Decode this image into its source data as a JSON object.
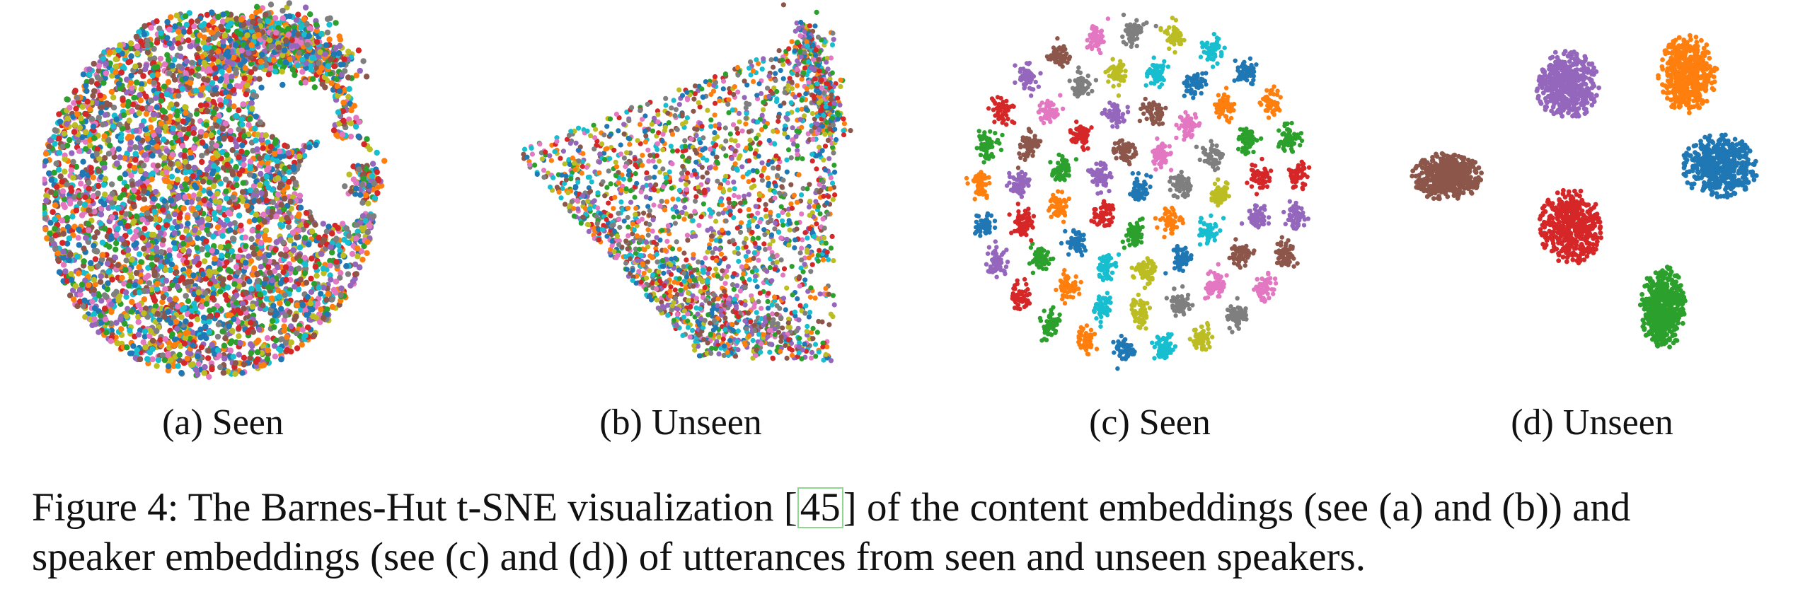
{
  "figure": {
    "subcaptions": [
      "(a) Seen",
      "(b) Unseen",
      "(c) Seen",
      "(d) Unseen"
    ],
    "caption": {
      "before_cite": "Figure 4: The Barnes-Hut t-SNE visualization [",
      "cite": "45",
      "after_cite": "] of the content embeddings (see (a) and (b)) and",
      "line2": "speaker embeddings (see (c) and (d)) of utterances from seen and unseen speakers."
    }
  },
  "palette": [
    "#1f77b4",
    "#ff7f0e",
    "#2ca02c",
    "#d62728",
    "#9467bd",
    "#8c564b",
    "#e377c2",
    "#7f7f7f",
    "#bcbd22",
    "#17becf"
  ],
  "panel_d_colors": [
    "#9467bd",
    "#ff7f0e",
    "#8c564b",
    "#1f77b4",
    "#d62728",
    "#2ca02c"
  ]
}
